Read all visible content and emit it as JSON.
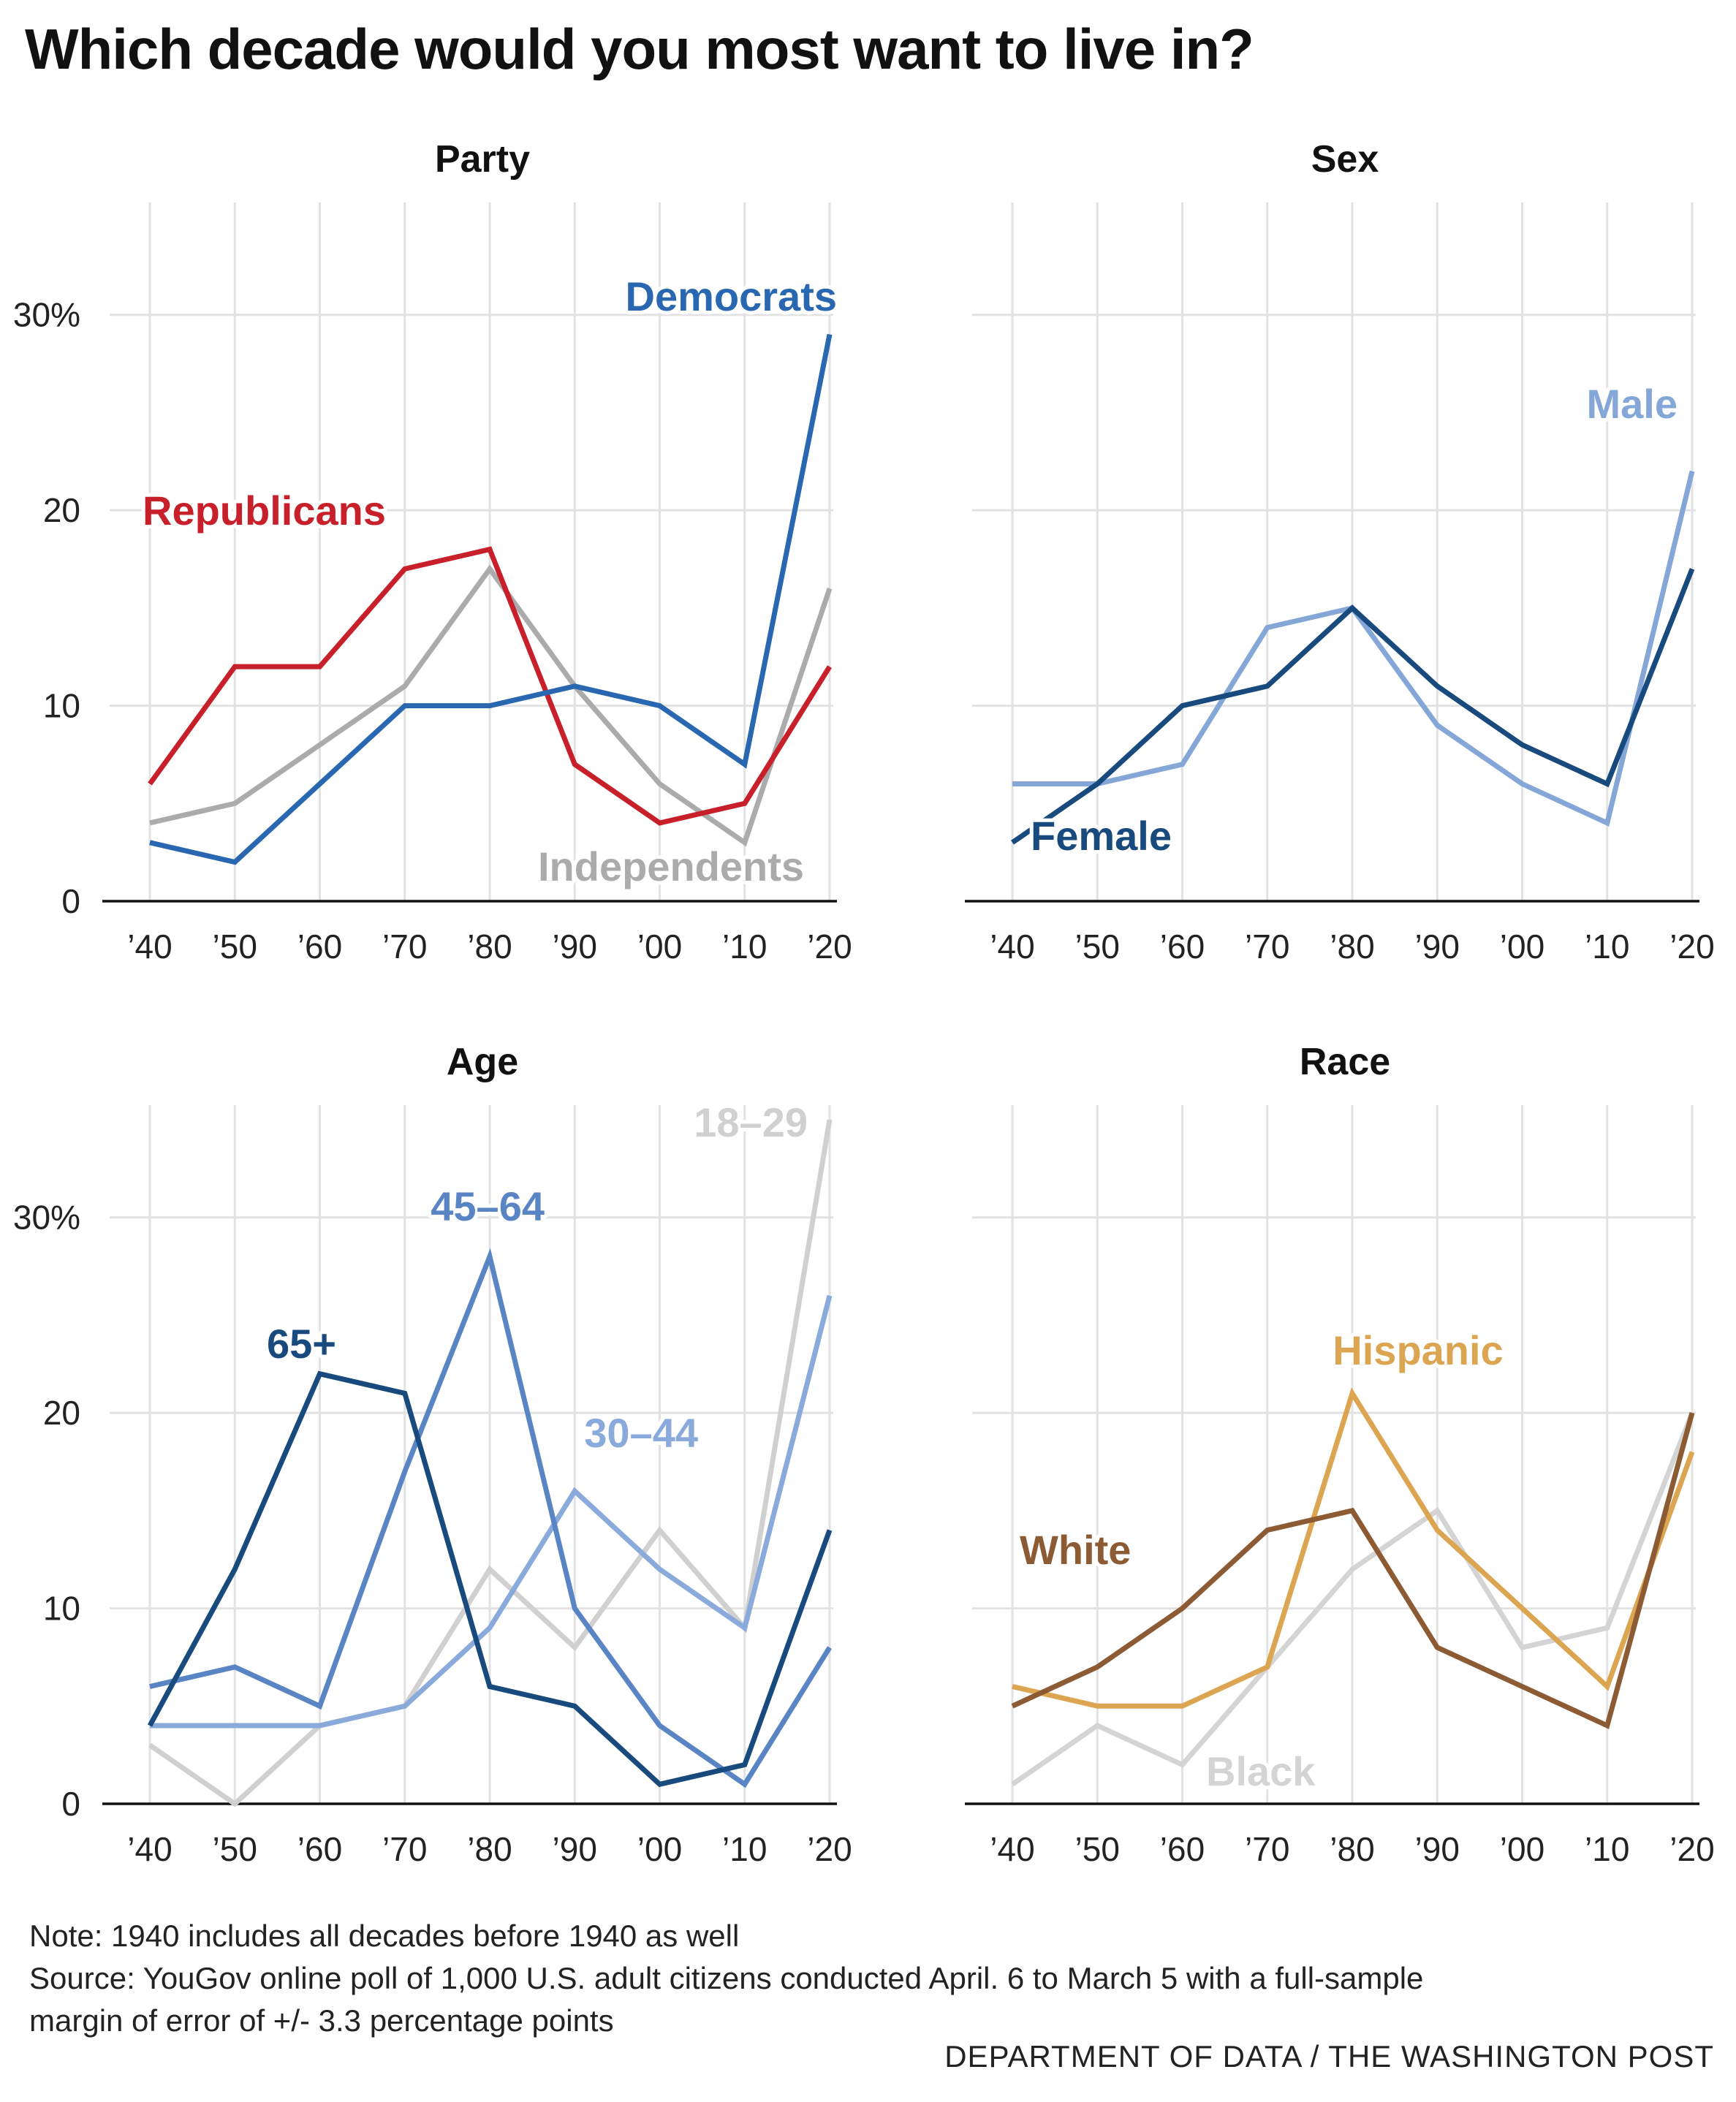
{
  "title": "Which decade would you most want to live in?",
  "footer": {
    "note": "Note: 1940 includes all decades before 1940 as well",
    "source_line1": "Source: YouGov online poll of 1,000 U.S. adult citizens conducted April. 6 to March 5 with a full-sample",
    "source_line2": "margin of error of +/- 3.3 percentage points",
    "credit": "DEPARTMENT OF DATA / THE WASHINGTON POST"
  },
  "chart_data": [
    {
      "type": "line",
      "title": "Party",
      "categories": [
        "’40",
        "’50",
        "’60",
        "’70",
        "’80",
        "’90",
        "’00",
        "’10",
        "’20"
      ],
      "y_ticks": [
        "0",
        "10",
        "20",
        "30%"
      ],
      "ylim": [
        0,
        35
      ],
      "grid": true,
      "series": [
        {
          "name": "Independents",
          "color": "#ababab",
          "values": [
            4,
            5,
            8,
            11,
            17,
            11,
            6,
            3,
            16
          ]
        },
        {
          "name": "Republicans",
          "color": "#c8202a",
          "values": [
            6,
            12,
            12,
            17,
            18,
            7,
            4,
            5,
            12
          ]
        },
        {
          "name": "Democrats",
          "color": "#2968b1",
          "values": [
            3,
            2,
            6,
            10,
            10,
            11,
            10,
            7,
            29
          ]
        }
      ]
    },
    {
      "type": "line",
      "title": "Sex",
      "categories": [
        "’40",
        "’50",
        "’60",
        "’70",
        "’80",
        "’90",
        "’00",
        "’10",
        "’20"
      ],
      "ylim": [
        0,
        35
      ],
      "grid": true,
      "series": [
        {
          "name": "Male",
          "color": "#84a7d8",
          "values": [
            6,
            6,
            7,
            14,
            15,
            9,
            6,
            4,
            22
          ]
        },
        {
          "name": "Female",
          "color": "#184a7e",
          "values": [
            3,
            6,
            10,
            11,
            15,
            11,
            8,
            6,
            17
          ]
        }
      ]
    },
    {
      "type": "line",
      "title": "Age",
      "categories": [
        "’40",
        "’50",
        "’60",
        "’70",
        "’80",
        "’90",
        "’00",
        "’10",
        "’20"
      ],
      "y_ticks": [
        "0",
        "10",
        "20",
        "30%"
      ],
      "ylim": [
        0,
        35
      ],
      "grid": true,
      "series": [
        {
          "name": "18–29",
          "color": "#d0d0d0",
          "values": [
            3,
            0,
            4,
            5,
            12,
            8,
            14,
            9,
            35
          ]
        },
        {
          "name": "30–44",
          "color": "#8aaadb",
          "values": [
            4,
            4,
            4,
            5,
            9,
            16,
            12,
            9,
            26
          ]
        },
        {
          "name": "45–64",
          "color": "#5a85c4",
          "values": [
            6,
            7,
            5,
            17,
            28,
            10,
            4,
            1,
            8
          ]
        },
        {
          "name": "65+",
          "color": "#184a7e",
          "values": [
            4,
            12,
            22,
            21,
            6,
            5,
            1,
            2,
            14
          ]
        }
      ]
    },
    {
      "type": "line",
      "title": "Race",
      "categories": [
        "’40",
        "’50",
        "’60",
        "’70",
        "’80",
        "’90",
        "’00",
        "’10",
        "’20"
      ],
      "ylim": [
        0,
        35
      ],
      "grid": true,
      "series": [
        {
          "name": "Black",
          "color": "#d4d4d4",
          "values": [
            1,
            4,
            2,
            7,
            12,
            15,
            8,
            9,
            20
          ]
        },
        {
          "name": "Hispanic",
          "color": "#dca552",
          "values": [
            6,
            5,
            5,
            7,
            21,
            14,
            10,
            6,
            18
          ]
        },
        {
          "name": "White",
          "color": "#8c5a33",
          "values": [
            5,
            7,
            10,
            14,
            15,
            8,
            6,
            4,
            20
          ]
        }
      ]
    }
  ]
}
